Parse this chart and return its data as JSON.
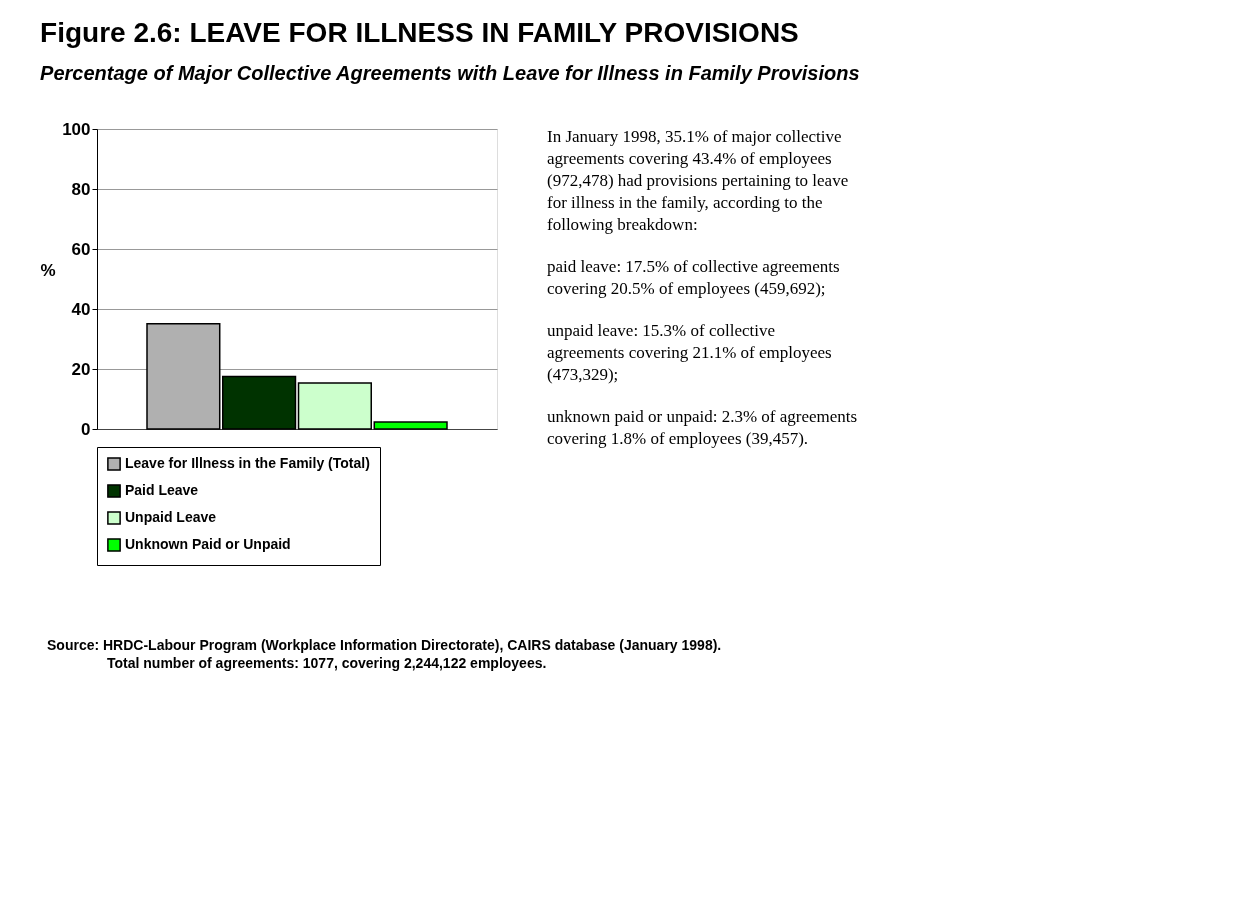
{
  "chart_data": {
    "type": "bar",
    "title": "Figure 2.6:  LEAVE FOR ILLNESS IN FAMILY PROVISIONS",
    "subtitle": "Percentage of Major Collective Agreements with Leave for Illness in Family Provisions",
    "ylabel": "%",
    "categories": [
      null
    ],
    "series": [
      {
        "name": "Leave for Illness in the Family (Total)",
        "color": "#b0b0b0",
        "values": [
          35.1
        ]
      },
      {
        "name": "Paid Leave",
        "color": "#003300",
        "values": [
          17.5
        ]
      },
      {
        "name": "Unpaid Leave",
        "color": "#ccffcc",
        "values": [
          15.3
        ]
      },
      {
        "name": "Unknown Paid or Unpaid",
        "color": "#00ff00",
        "values": [
          2.3
        ]
      }
    ],
    "ylim": [
      0,
      100
    ],
    "yticks": [
      0,
      20,
      40,
      60,
      80,
      100
    ],
    "grid": "y",
    "legend": "bottom",
    "tick_labels": "y",
    "annotations": [
      "In January 1998, 35.1% of major collective agreements covering 43.4% of employees (972,478) had provisions pertaining to leave for illness in the family, according to the following breakdown:",
      "paid leave:  17.5% of collective agreements covering 20.5% of employees (459,692);",
      "unpaid leave:  15.3% of collective agreements covering 21.1% of employees (473,329);",
      "unknown paid or unpaid:  2.3% of agreements covering 1.8% of employees (39,457).",
      "Source:  HRDC-Labour Program (Workplace Information Directorate), CAIRS database (January 1998).",
      "Total number of agreements: 1077, covering 2,244,122 employees."
    ]
  }
}
